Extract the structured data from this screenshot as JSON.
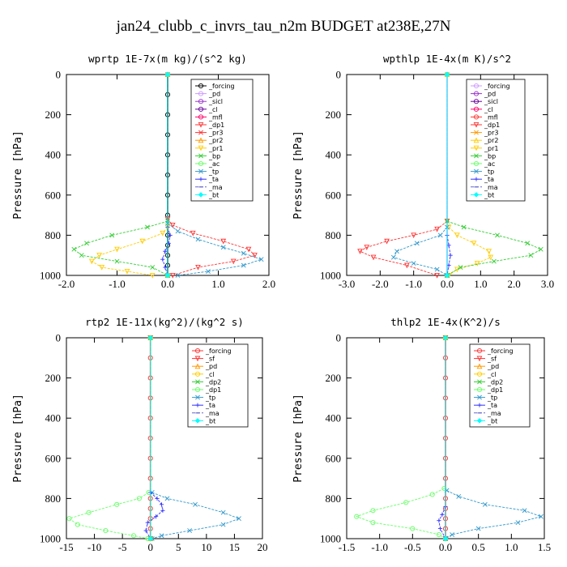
{
  "figure": {
    "title": "jan24_clubb_c_invrs_tau_n2m  BUDGET at238E,27N"
  },
  "chart_data": [
    {
      "type": "line",
      "title": "wprtp  1E-7x(m kg)/(s^2 kg)",
      "ylabel": "Pressure [hPa]",
      "xlim": [
        -2.0,
        2.0
      ],
      "ylim": [
        1000,
        0
      ],
      "xticks": [
        "-2.0",
        "-1.0",
        "0.0",
        "1.0",
        "2.0"
      ],
      "xtick_values": [
        -2,
        -1,
        0,
        1,
        2
      ],
      "yticks": [
        "0",
        "200",
        "400",
        "600",
        "800",
        "1000"
      ],
      "ytick_values": [
        0,
        200,
        400,
        600,
        800,
        1000
      ],
      "legend_position": "top-right",
      "series": [
        {
          "name": "_forcing",
          "color": "#000000",
          "marker": "o",
          "x": [
            0,
            0,
            0,
            0,
            0,
            0,
            0,
            0,
            0,
            0,
            0,
            0,
            0
          ],
          "y": [
            0,
            100,
            200,
            300,
            400,
            500,
            600,
            700,
            800,
            850,
            900,
            950,
            1000
          ]
        },
        {
          "name": "_pd",
          "color": "#cc99ff",
          "marker": "o",
          "x": [
            0,
            0
          ],
          "y": [
            0,
            1000
          ]
        },
        {
          "name": "_sicl",
          "color": "#9933cc",
          "marker": "o",
          "x": [
            0,
            0
          ],
          "y": [
            0,
            1000
          ]
        },
        {
          "name": "_cl",
          "color": "#660099",
          "marker": "o",
          "x": [
            0,
            0
          ],
          "y": [
            0,
            1000
          ]
        },
        {
          "name": "_mfl",
          "color": "#ff0066",
          "marker": "o",
          "x": [
            0,
            0
          ],
          "y": [
            0,
            1000
          ]
        },
        {
          "name": "_dp1",
          "color": "#ff3333",
          "marker": "v",
          "x": [
            0,
            0.1,
            0.5,
            1.1,
            1.6,
            1.72,
            1.3,
            0.6,
            0.1
          ],
          "y": [
            720,
            750,
            790,
            830,
            870,
            900,
            930,
            960,
            1000
          ]
        },
        {
          "name": "_pr3",
          "color": "#ff3333",
          "marker": "x",
          "x": [
            0,
            0
          ],
          "y": [
            0,
            1000
          ]
        },
        {
          "name": "_pr2",
          "color": "#ff9900",
          "marker": "^",
          "x": [
            0,
            0
          ],
          "y": [
            0,
            1000
          ]
        },
        {
          "name": "_pr1",
          "color": "#ffcc00",
          "marker": "v",
          "x": [
            0,
            -0.1,
            -0.5,
            -1.0,
            -1.35,
            -1.5,
            -1.3,
            -0.8,
            -0.3
          ],
          "y": [
            760,
            790,
            830,
            870,
            900,
            930,
            960,
            980,
            1000
          ]
        },
        {
          "name": "_bp",
          "color": "#33cc33",
          "marker": "x",
          "x": [
            0,
            -0.4,
            -1.1,
            -1.6,
            -1.85,
            -1.7,
            -1.0,
            -0.3,
            0
          ],
          "y": [
            730,
            760,
            800,
            840,
            870,
            900,
            930,
            960,
            1000
          ]
        },
        {
          "name": "_ac",
          "color": "#66ff66",
          "marker": "o",
          "x": [
            0,
            0
          ],
          "y": [
            0,
            1000
          ]
        },
        {
          "name": "_tp",
          "color": "#3399cc",
          "marker": "x",
          "x": [
            0,
            0.2,
            0.6,
            1.1,
            1.5,
            1.85,
            1.5,
            0.8,
            0.2
          ],
          "y": [
            740,
            780,
            820,
            860,
            890,
            920,
            950,
            980,
            1000
          ]
        },
        {
          "name": "_ta",
          "color": "#3333ff",
          "marker": "+",
          "x": [
            0,
            0.05,
            0.02,
            -0.05,
            -0.1,
            -0.05,
            0
          ],
          "y": [
            760,
            800,
            840,
            880,
            920,
            960,
            1000
          ]
        },
        {
          "name": "_ma",
          "color": "#6666cc",
          "marker": "-",
          "x": [
            0,
            0
          ],
          "y": [
            0,
            1000
          ]
        },
        {
          "name": "_bt",
          "color": "#00ffff",
          "marker": "D",
          "x": [
            0,
            0
          ],
          "y": [
            0,
            1000
          ]
        }
      ]
    },
    {
      "type": "line",
      "title": "wpthlp  1E-4x(m K)/s^2",
      "ylabel": "Pressure [hPa]",
      "xlim": [
        -3.0,
        3.0
      ],
      "ylim": [
        1000,
        0
      ],
      "xticks": [
        "-3.0",
        "-2.0",
        "-1.0",
        "0.0",
        "1.0",
        "2.0",
        "3.0"
      ],
      "xtick_values": [
        -3,
        -2,
        -1,
        0,
        1,
        2,
        3
      ],
      "yticks": [
        "0",
        "200",
        "400",
        "600",
        "800",
        "1000"
      ],
      "ytick_values": [
        0,
        200,
        400,
        600,
        800,
        1000
      ],
      "legend_position": "top-right",
      "series": [
        {
          "name": "_forcing",
          "color": "#cc99ff",
          "marker": "o",
          "x": [
            0,
            0
          ],
          "y": [
            0,
            1000
          ]
        },
        {
          "name": "_pd",
          "color": "#9933cc",
          "marker": "o",
          "x": [
            0,
            0
          ],
          "y": [
            0,
            1000
          ]
        },
        {
          "name": "_sicl",
          "color": "#660099",
          "marker": "o",
          "x": [
            0,
            0
          ],
          "y": [
            0,
            1000
          ]
        },
        {
          "name": "_cl",
          "color": "#ff0066",
          "marker": "o",
          "x": [
            0,
            0
          ],
          "y": [
            0,
            1000
          ]
        },
        {
          "name": "_mfl",
          "color": "#ff3333",
          "marker": "o",
          "x": [
            0,
            0
          ],
          "y": [
            0,
            1000
          ]
        },
        {
          "name": "_dp1",
          "color": "#ff3333",
          "marker": "v",
          "x": [
            0,
            -0.3,
            -1.0,
            -1.8,
            -2.4,
            -2.6,
            -2.2,
            -1.2,
            -0.3
          ],
          "y": [
            730,
            770,
            800,
            830,
            860,
            880,
            910,
            950,
            1000
          ]
        },
        {
          "name": "_pr3",
          "color": "#ff9900",
          "marker": "x",
          "x": [
            0,
            0
          ],
          "y": [
            0,
            1000
          ]
        },
        {
          "name": "_pr2",
          "color": "#ffcc00",
          "marker": "^",
          "x": [
            0,
            0
          ],
          "y": [
            0,
            1000
          ]
        },
        {
          "name": "_pr1",
          "color": "#ffcc00",
          "marker": "v",
          "x": [
            0.05,
            0.3,
            0.8,
            1.25,
            1.3,
            0.9,
            0.3,
            0.05
          ],
          "y": [
            760,
            800,
            840,
            880,
            910,
            940,
            970,
            1000
          ]
        },
        {
          "name": "_bp",
          "color": "#33cc33",
          "marker": "x",
          "x": [
            0,
            0.5,
            1.5,
            2.4,
            2.8,
            2.5,
            1.4,
            0.4,
            0
          ],
          "y": [
            730,
            760,
            800,
            840,
            870,
            900,
            930,
            960,
            1000
          ]
        },
        {
          "name": "_ac",
          "color": "#66ff66",
          "marker": "o",
          "x": [
            0,
            0
          ],
          "y": [
            0,
            1000
          ]
        },
        {
          "name": "_tp",
          "color": "#3399cc",
          "marker": "x",
          "x": [
            0,
            -0.2,
            -0.9,
            -1.5,
            -1.6,
            -1.0,
            -0.3,
            0
          ],
          "y": [
            760,
            800,
            840,
            880,
            910,
            940,
            970,
            1000
          ]
        },
        {
          "name": "_ta",
          "color": "#3333ff",
          "marker": "+",
          "x": [
            0,
            0.05,
            0.1,
            0.05,
            0
          ],
          "y": [
            800,
            850,
            900,
            950,
            1000
          ]
        },
        {
          "name": "_ma",
          "color": "#6666cc",
          "marker": "-",
          "x": [
            0,
            0
          ],
          "y": [
            0,
            1000
          ]
        },
        {
          "name": "_bt",
          "color": "#00ffff",
          "marker": "D",
          "x": [
            0,
            0
          ],
          "y": [
            0,
            1000
          ]
        }
      ]
    },
    {
      "type": "line",
      "title": "rtp2  1E-11x(kg^2)/(kg^2 s)",
      "ylabel": "Pressure [hPa]",
      "xlim": [
        -15,
        20
      ],
      "ylim": [
        1000,
        0
      ],
      "xticks": [
        "-15",
        "-10",
        "-5",
        "0",
        "5",
        "10",
        "15",
        "20"
      ],
      "xtick_values": [
        -15,
        -10,
        -5,
        0,
        5,
        10,
        15,
        20
      ],
      "yticks": [
        "0",
        "200",
        "400",
        "600",
        "800",
        "1000"
      ],
      "ytick_values": [
        0,
        200,
        400,
        600,
        800,
        1000
      ],
      "legend_position": "top-right",
      "series": [
        {
          "name": "_forcing",
          "color": "#ff3333",
          "marker": "o",
          "x": [
            0,
            0,
            0,
            0,
            0,
            0,
            0,
            0,
            0,
            0,
            0,
            0,
            0
          ],
          "y": [
            0,
            100,
            200,
            300,
            400,
            500,
            600,
            700,
            800,
            850,
            900,
            950,
            1000
          ]
        },
        {
          "name": "_sf",
          "color": "#ff3333",
          "marker": "v",
          "x": [
            0,
            0
          ],
          "y": [
            0,
            1000
          ]
        },
        {
          "name": "_pd",
          "color": "#ff9900",
          "marker": "^",
          "x": [
            0,
            0
          ],
          "y": [
            0,
            1000
          ]
        },
        {
          "name": "_cl",
          "color": "#ffcc00",
          "marker": "o",
          "x": [
            0,
            0
          ],
          "y": [
            0,
            1000
          ]
        },
        {
          "name": "_dp2",
          "color": "#33cc33",
          "marker": "x",
          "x": [
            0,
            0
          ],
          "y": [
            0,
            1000
          ]
        },
        {
          "name": "_dp1",
          "color": "#66ff66",
          "marker": "o",
          "x": [
            -0.3,
            -2,
            -6,
            -11,
            -14.5,
            -13,
            -8,
            -3,
            -0.5
          ],
          "y": [
            770,
            800,
            830,
            870,
            900,
            930,
            960,
            985,
            1000
          ]
        },
        {
          "name": "_tp",
          "color": "#3399cc",
          "marker": "x",
          "x": [
            0.3,
            3,
            8,
            13,
            15.8,
            13,
            7,
            2,
            0.3
          ],
          "y": [
            770,
            800,
            830,
            870,
            900,
            930,
            960,
            985,
            1000
          ]
        },
        {
          "name": "_ta",
          "color": "#3333ff",
          "marker": "+",
          "x": [
            0,
            1.2,
            2.0,
            2.2,
            1.0,
            -0.5,
            -0.8,
            0
          ],
          "y": [
            770,
            800,
            830,
            860,
            890,
            920,
            960,
            1000
          ]
        },
        {
          "name": "_ma",
          "color": "#6666cc",
          "marker": "-",
          "x": [
            0,
            0
          ],
          "y": [
            0,
            1000
          ]
        },
        {
          "name": "_bt",
          "color": "#00ffff",
          "marker": "D",
          "x": [
            0,
            0
          ],
          "y": [
            0,
            1000
          ]
        }
      ]
    },
    {
      "type": "line",
      "title": "thlp2  1E-4x(K^2)/s",
      "ylabel": "Pressure [hPa]",
      "xlim": [
        -1.5,
        1.5
      ],
      "ylim": [
        1000,
        0
      ],
      "xticks": [
        "-1.5",
        "-1.0",
        "-0.5",
        "0.0",
        "0.5",
        "1.0",
        "1.5"
      ],
      "xtick_values": [
        -1.5,
        -1.0,
        -0.5,
        0,
        0.5,
        1.0,
        1.5
      ],
      "yticks": [
        "0",
        "200",
        "400",
        "600",
        "800",
        "1000"
      ],
      "ytick_values": [
        0,
        200,
        400,
        600,
        800,
        1000
      ],
      "legend_position": "top-right",
      "series": [
        {
          "name": "_forcing",
          "color": "#ff3333",
          "marker": "o",
          "x": [
            0,
            0,
            0,
            0,
            0,
            0,
            0,
            0,
            0,
            0,
            0,
            0,
            0
          ],
          "y": [
            0,
            100,
            200,
            300,
            400,
            500,
            600,
            700,
            800,
            850,
            900,
            950,
            1000
          ]
        },
        {
          "name": "_sf",
          "color": "#ff3333",
          "marker": "v",
          "x": [
            0,
            0
          ],
          "y": [
            0,
            1000
          ]
        },
        {
          "name": "_pd",
          "color": "#ff9900",
          "marker": "^",
          "x": [
            0,
            0
          ],
          "y": [
            0,
            1000
          ]
        },
        {
          "name": "_cl",
          "color": "#ffcc00",
          "marker": "o",
          "x": [
            0,
            0
          ],
          "y": [
            0,
            1000
          ]
        },
        {
          "name": "_dp2",
          "color": "#33cc33",
          "marker": "x",
          "x": [
            0,
            0
          ],
          "y": [
            0,
            1000
          ]
        },
        {
          "name": "_dp1",
          "color": "#66ff66",
          "marker": "o",
          "x": [
            -0.02,
            -0.2,
            -0.6,
            -1.1,
            -1.35,
            -1.1,
            -0.5,
            -0.1,
            0
          ],
          "y": [
            750,
            780,
            820,
            860,
            890,
            920,
            950,
            980,
            1000
          ]
        },
        {
          "name": "_tp",
          "color": "#3399cc",
          "marker": "x",
          "x": [
            0.02,
            0.2,
            0.6,
            1.2,
            1.45,
            1.1,
            0.5,
            0.1,
            0
          ],
          "y": [
            760,
            790,
            830,
            860,
            890,
            920,
            950,
            980,
            1000
          ]
        },
        {
          "name": "_ta",
          "color": "#3333ff",
          "marker": "+",
          "x": [
            0,
            -0.05,
            -0.1,
            -0.08,
            0
          ],
          "y": [
            840,
            880,
            910,
            950,
            1000
          ]
        },
        {
          "name": "_ma",
          "color": "#6666cc",
          "marker": "-",
          "x": [
            0,
            0
          ],
          "y": [
            0,
            1000
          ]
        },
        {
          "name": "_bt",
          "color": "#00ffff",
          "marker": "D",
          "x": [
            0,
            0
          ],
          "y": [
            0,
            1000
          ]
        }
      ]
    }
  ]
}
